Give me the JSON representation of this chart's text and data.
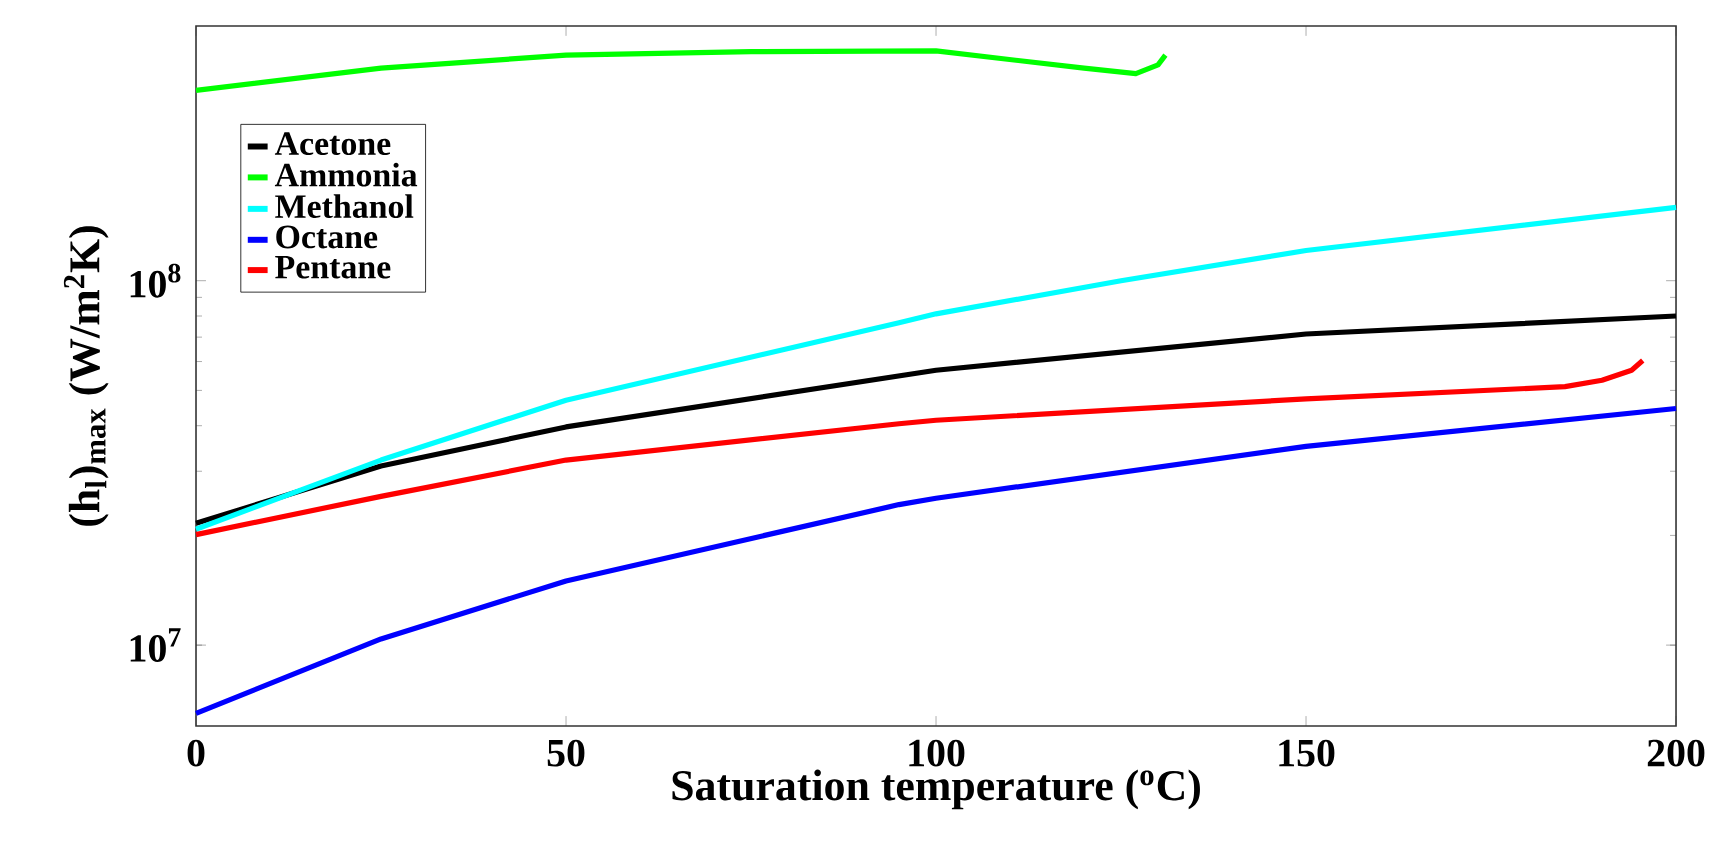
{
  "chart_data": {
    "type": "line",
    "xlabel": "Saturation temperature ($^{o}$C)",
    "ylabel": "(h$_{l}$)$_{max}$ (W/m$^{2}$K)",
    "log": "y",
    "xlim": [
      0,
      200
    ],
    "ylim": [
      6000000,
      500000000
    ],
    "xticks": [
      0,
      50,
      100,
      150,
      200
    ],
    "yticks": [
      {
        "value": 10000000,
        "label": "10$^{7}$"
      },
      {
        "value": 100000000,
        "label": "10$^{8}$"
      }
    ],
    "grid": false,
    "legend": "top left",
    "marker": "none",
    "line_style": "solid",
    "series": [
      {
        "name": "Acetone",
        "color": "#000000",
        "x": [
          0,
          25,
          50,
          95,
          100,
          150,
          200
        ],
        "values": [
          21600000,
          31000000,
          39700000,
          54800000,
          56800000,
          71400000,
          80000000
        ]
      },
      {
        "name": "Ammonia",
        "color": "#00ff00",
        "x": [
          0,
          25,
          50,
          75,
          100,
          120,
          127,
          130,
          131
        ],
        "values": [
          333000000,
          383000000,
          416000000,
          425000000,
          427000000,
          383000000,
          370000000,
          391000000,
          416000000
        ]
      },
      {
        "name": "Methanol",
        "color": "#00ffff",
        "x": [
          0,
          25,
          50,
          95,
          100,
          125,
          150,
          200
        ],
        "values": [
          20800000,
          32200000,
          47000000,
          76700000,
          81100000,
          100000000,
          121000000,
          159000000
        ]
      },
      {
        "name": "Octane",
        "color": "#0000ff",
        "x": [
          0,
          25,
          50,
          95,
          100,
          150,
          200
        ],
        "values": [
          6500000,
          10400000,
          15000000,
          24300000,
          25300000,
          35100000,
          44600000
        ]
      },
      {
        "name": "Pentane",
        "color": "#ff0000",
        "x": [
          0,
          25,
          50,
          95,
          100,
          150,
          185,
          190,
          194,
          195.5
        ],
        "values": [
          20100000,
          25600000,
          32200000,
          40500000,
          41400000,
          47400000,
          51200000,
          53300000,
          56800000,
          60400000
        ]
      }
    ]
  }
}
